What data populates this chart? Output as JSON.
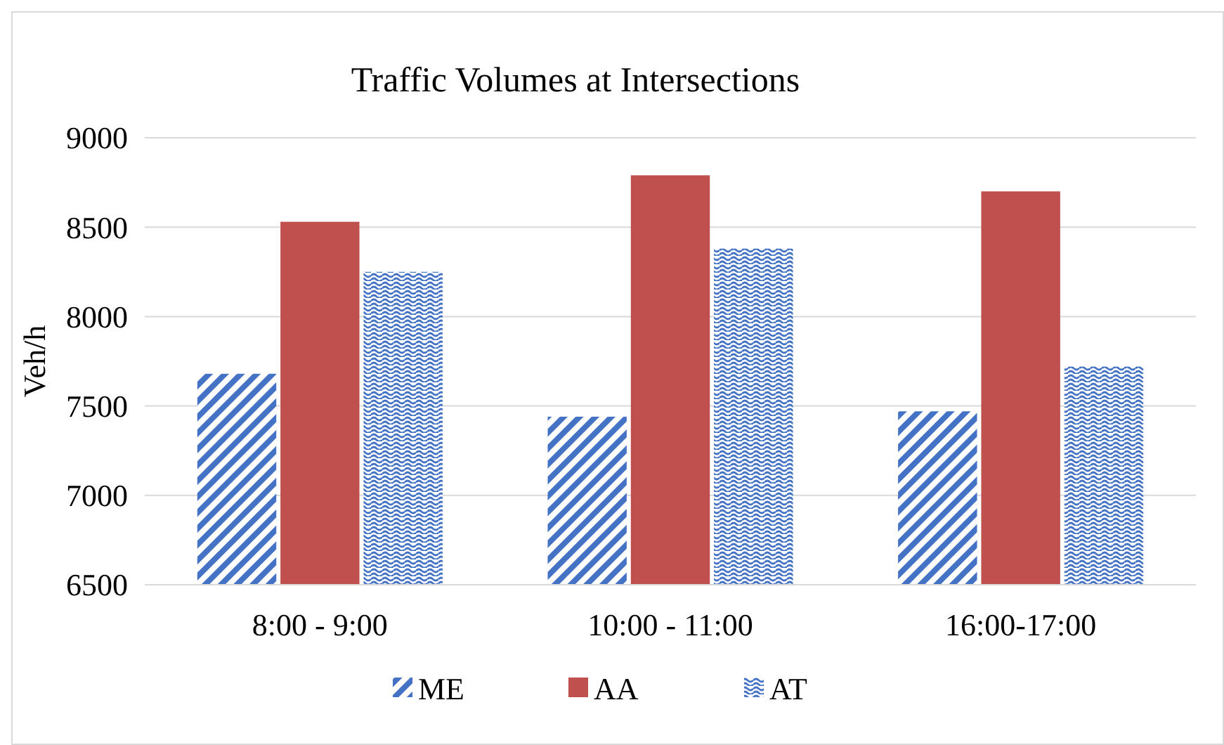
{
  "chart_data": {
    "type": "bar",
    "title": "Traffic Volumes at Intersections",
    "ylabel": "Veh/h",
    "categories": [
      "8:00 - 9:00",
      "10:00 - 11:00",
      "16:00-17:00"
    ],
    "series": [
      {
        "name": "ME",
        "color": "#4472c4",
        "values": [
          7680,
          7440,
          7470
        ]
      },
      {
        "name": "AA",
        "color": "#c0504d",
        "values": [
          8530,
          8790,
          8700
        ]
      },
      {
        "name": "AT",
        "color": "#4472c4",
        "values": [
          8250,
          8380,
          7720
        ]
      }
    ],
    "ylim": [
      6500,
      9000
    ],
    "yticks": [
      6500,
      7000,
      7500,
      8000,
      8500,
      9000
    ],
    "grid": "y",
    "legend": "bottom"
  }
}
